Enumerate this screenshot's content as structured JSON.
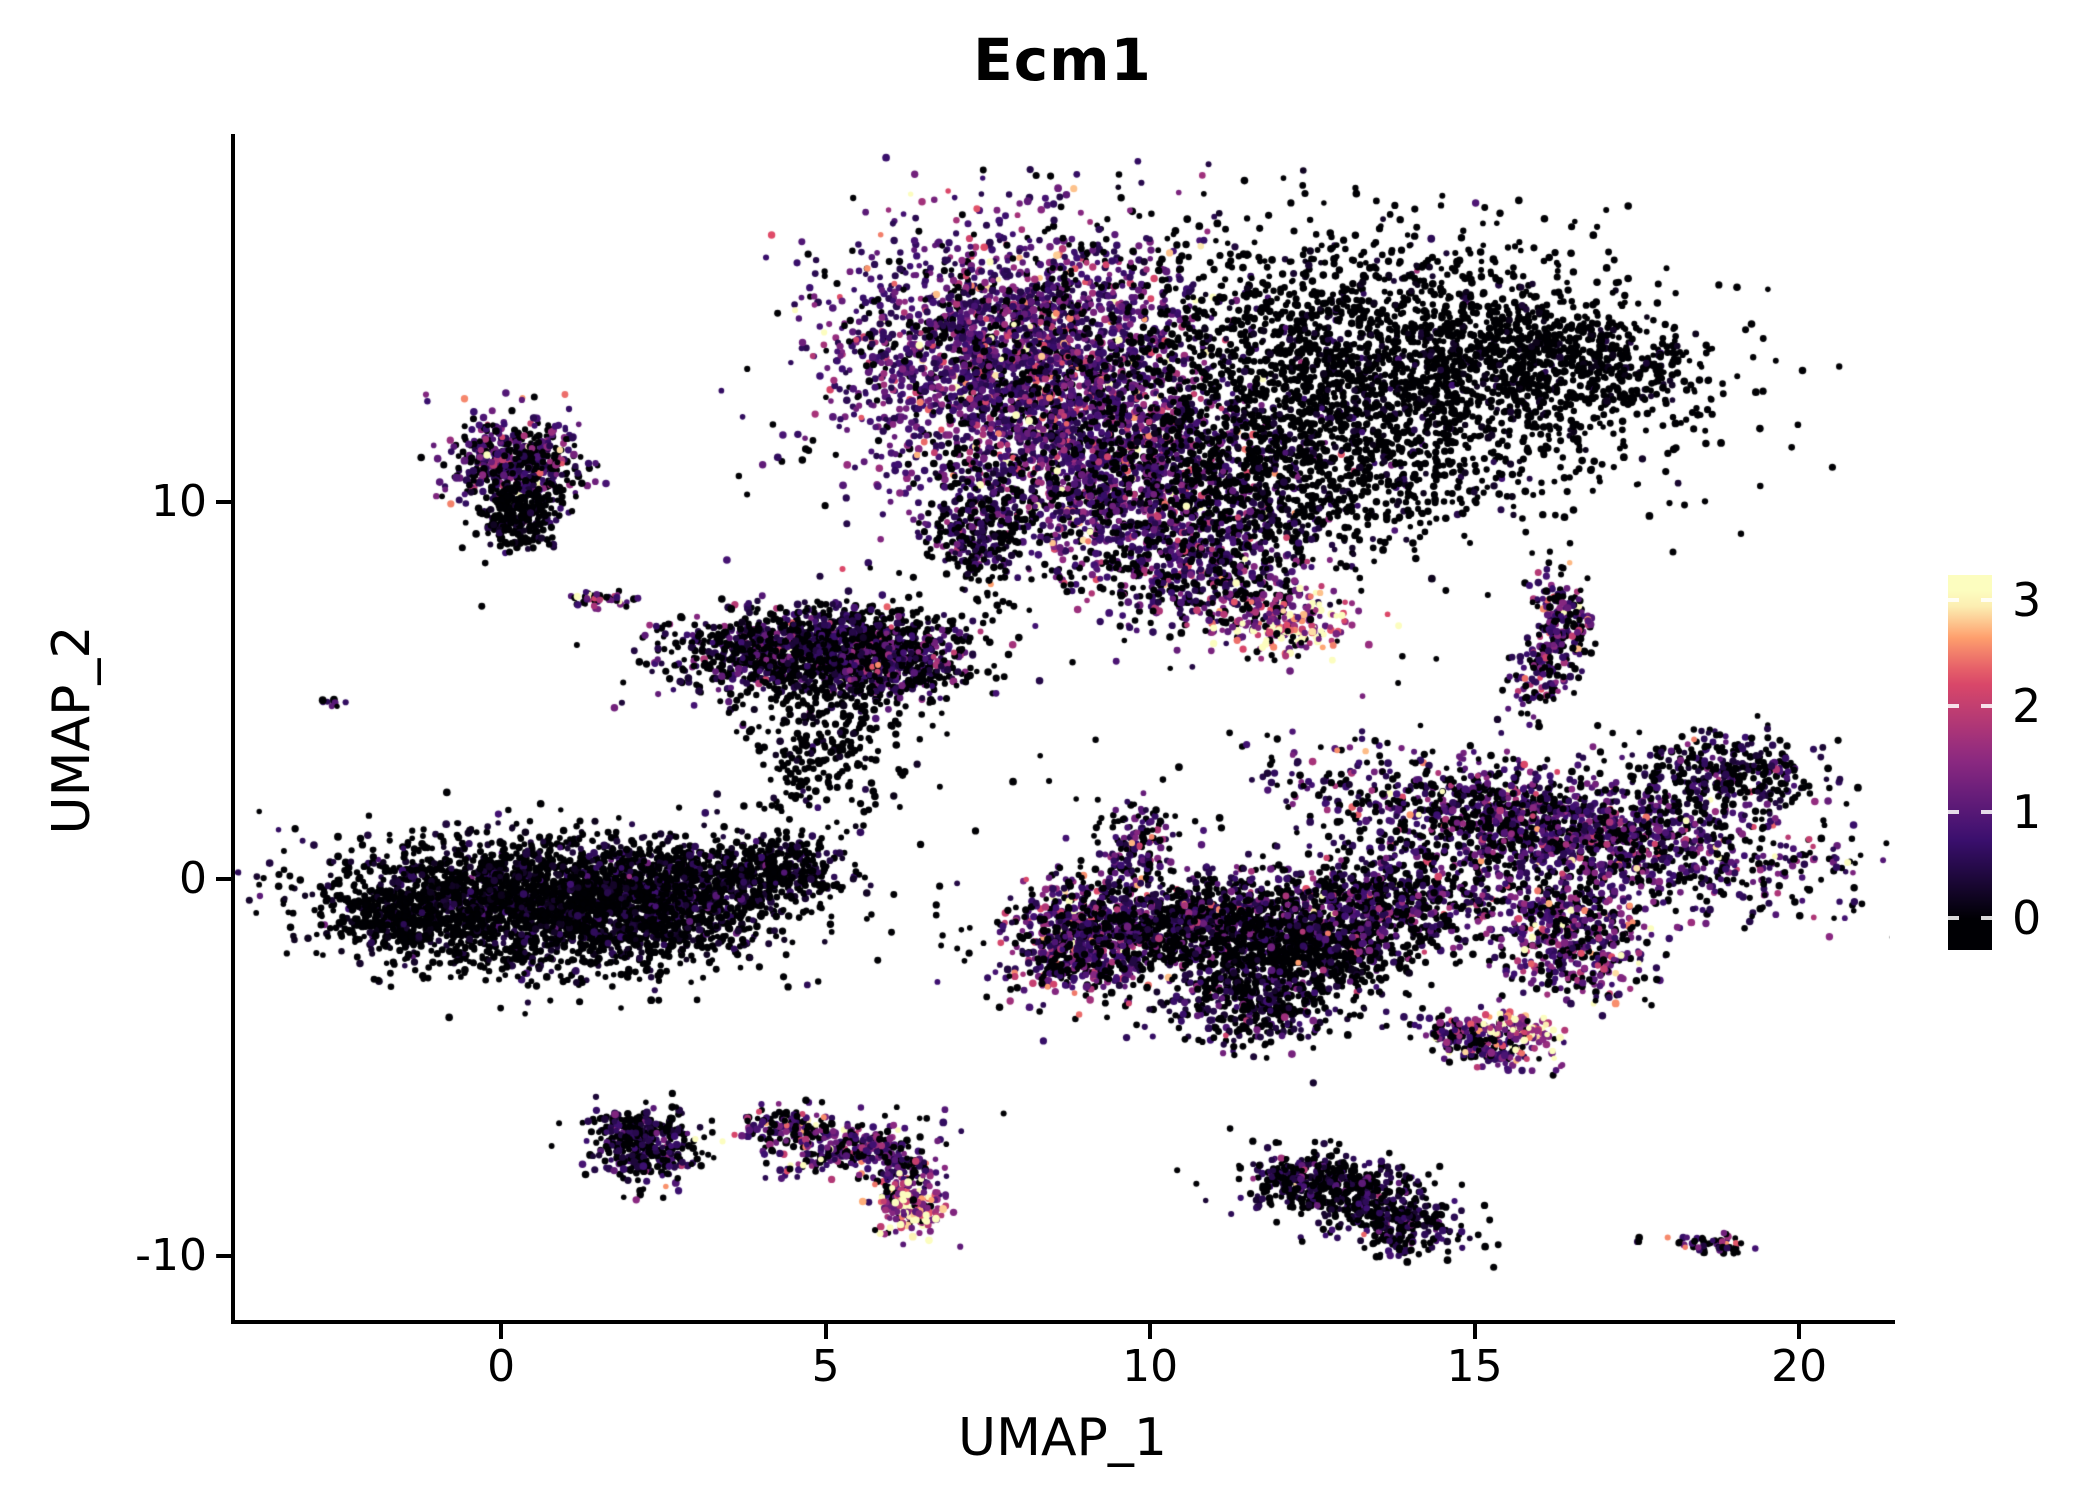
{
  "chart_data": {
    "type": "scatter",
    "title": "Ecm1",
    "xlabel": "UMAP_1",
    "ylabel": "UMAP_2",
    "xlim": [
      -4.1,
      21.4
    ],
    "ylim": [
      -11.7,
      19.6
    ],
    "x_ticks": [
      0,
      5,
      10,
      15,
      20
    ],
    "y_ticks": [
      10,
      0,
      -10
    ],
    "grid": false,
    "legend": "colorbar-right",
    "point_color_encodes": "Ecm1 expression level per cell (0 to 3)",
    "color_scale": {
      "name": "magma",
      "domain": [
        0,
        3
      ],
      "stops": [
        {
          "v": 0.0,
          "c": "#000004"
        },
        {
          "v": 0.75,
          "c": "#3b0f70"
        },
        {
          "v": 1.5,
          "c": "#8c2981"
        },
        {
          "v": 2.25,
          "c": "#de4968"
        },
        {
          "v": 2.65,
          "c": "#fe9f6d"
        },
        {
          "v": 3.0,
          "c": "#fcfdbf"
        }
      ]
    },
    "cluster_blob_fields": [
      "center_x",
      "center_y",
      "sd_x",
      "sd_y",
      "rot_deg",
      "n_points",
      "frac_zero_expr",
      "mean_expr"
    ],
    "clusters": [
      [
        8.0,
        14.0,
        1.4,
        1.7,
        0,
        2600,
        0.22,
        1.0
      ],
      [
        9.5,
        10.6,
        1.3,
        1.4,
        0,
        1700,
        0.3,
        1.05
      ],
      [
        13.5,
        13.5,
        2.0,
        1.7,
        -20,
        2400,
        0.87,
        0.3
      ],
      [
        16.5,
        13.8,
        1.1,
        0.8,
        -25,
        600,
        0.9,
        0.25
      ],
      [
        12.0,
        10.5,
        1.3,
        1.1,
        0,
        700,
        0.8,
        0.4
      ],
      [
        7.3,
        9.2,
        0.35,
        0.8,
        0,
        250,
        0.6,
        0.6
      ],
      [
        10.9,
        8.0,
        0.8,
        0.8,
        0,
        450,
        0.45,
        0.9
      ],
      [
        12.2,
        6.8,
        0.55,
        0.45,
        0,
        220,
        0.08,
        2.1
      ],
      [
        0.2,
        11.0,
        0.5,
        0.7,
        0,
        550,
        0.4,
        1.0
      ],
      [
        0.3,
        9.6,
        0.35,
        0.5,
        0,
        250,
        0.8,
        0.4
      ],
      [
        1.6,
        7.4,
        0.3,
        0.12,
        -20,
        45,
        0.35,
        1.4
      ],
      [
        -2.6,
        4.7,
        0.1,
        0.1,
        0,
        10,
        0.4,
        1.2
      ],
      [
        4.7,
        6.1,
        1.1,
        0.55,
        8,
        1200,
        0.6,
        0.7
      ],
      [
        5.9,
        5.6,
        0.7,
        0.5,
        0,
        500,
        0.55,
        0.8
      ],
      [
        5.0,
        3.6,
        0.6,
        1.0,
        0,
        280,
        0.85,
        0.25
      ],
      [
        0.6,
        -0.7,
        1.6,
        0.85,
        -8,
        2600,
        0.78,
        0.35
      ],
      [
        2.8,
        -0.2,
        1.0,
        0.6,
        0,
        900,
        0.7,
        0.5
      ],
      [
        -1.6,
        -1.1,
        0.5,
        0.4,
        -20,
        300,
        0.85,
        0.25
      ],
      [
        4.3,
        0.3,
        0.5,
        0.45,
        0,
        250,
        0.7,
        0.5
      ],
      [
        8.9,
        -1.6,
        0.55,
        0.8,
        0,
        550,
        0.28,
        1.2
      ],
      [
        10.6,
        -1.2,
        1.3,
        0.65,
        10,
        1300,
        0.55,
        0.8
      ],
      [
        12.3,
        -2.0,
        0.9,
        0.6,
        10,
        700,
        0.85,
        0.3
      ],
      [
        13.6,
        -0.6,
        0.9,
        0.7,
        30,
        700,
        0.5,
        0.9
      ],
      [
        16.3,
        1.3,
        1.9,
        0.75,
        -18,
        1800,
        0.45,
        0.95
      ],
      [
        18.9,
        2.8,
        0.8,
        0.5,
        -20,
        350,
        0.6,
        0.7
      ],
      [
        16.4,
        -1.4,
        0.6,
        0.9,
        15,
        550,
        0.35,
        1.1
      ],
      [
        11.6,
        -3.4,
        0.7,
        0.55,
        0,
        350,
        0.6,
        0.6
      ],
      [
        9.8,
        0.8,
        0.35,
        0.6,
        0,
        160,
        0.5,
        0.9
      ],
      [
        16.35,
        7.0,
        0.22,
        0.55,
        10,
        160,
        0.35,
        1.2
      ],
      [
        16.05,
        5.6,
        0.22,
        0.6,
        -10,
        160,
        0.4,
        1.1
      ],
      [
        15.2,
        -4.3,
        0.55,
        0.28,
        -25,
        260,
        0.35,
        1.2
      ],
      [
        15.7,
        -3.9,
        0.3,
        0.15,
        -25,
        80,
        0.05,
        2.4
      ],
      [
        2.2,
        -7.0,
        0.42,
        0.5,
        0,
        380,
        0.55,
        0.7
      ],
      [
        4.35,
        -6.6,
        0.4,
        0.28,
        10,
        140,
        0.4,
        1.2
      ],
      [
        5.4,
        -7.1,
        0.55,
        0.3,
        25,
        220,
        0.35,
        1.2
      ],
      [
        6.15,
        -7.9,
        0.25,
        0.45,
        0,
        160,
        0.4,
        1.1
      ],
      [
        6.35,
        -8.7,
        0.28,
        0.4,
        0,
        150,
        0.06,
        2.2
      ],
      [
        13.0,
        -8.2,
        0.7,
        0.45,
        -20,
        420,
        0.6,
        0.55
      ],
      [
        13.9,
        -9.2,
        0.5,
        0.4,
        -30,
        250,
        0.55,
        0.6
      ],
      [
        12.2,
        -7.9,
        0.3,
        0.3,
        0,
        120,
        0.5,
        0.7
      ],
      [
        18.6,
        -9.7,
        0.3,
        0.13,
        -10,
        55,
        0.5,
        0.9
      ],
      [
        17.5,
        -9.5,
        0.06,
        0.06,
        0,
        3,
        0.5,
        0.8
      ],
      [
        9.5,
        3.5,
        4.2,
        4.0,
        0,
        80,
        0.75,
        0.4
      ]
    ]
  },
  "colorbar": {
    "ticks": [
      3,
      2,
      1,
      0
    ],
    "range": [
      -0.3,
      3.24
    ]
  }
}
